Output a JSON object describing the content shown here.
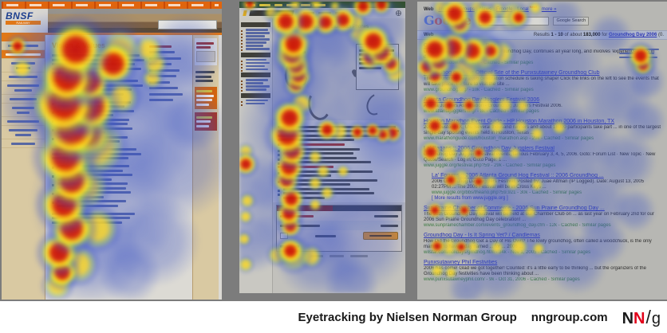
{
  "caption": {
    "text": "Eyetracking by Nielsen Norman Group",
    "site": "nngroup.com",
    "logo": {
      "n1": "N",
      "n2": "N",
      "slash": "/",
      "g": "g"
    }
  },
  "panels": {
    "bnsf": {
      "logo": "BNSF",
      "logo_sub": "RAILWAY",
      "page_title": "Vision & Values",
      "heatmap": {
        "hot": [
          [
            93,
            60,
            26
          ],
          [
            140,
            78,
            20
          ],
          [
            82,
            95,
            26
          ],
          [
            110,
            100,
            20
          ],
          [
            78,
            128,
            30
          ],
          [
            112,
            132,
            24
          ],
          [
            88,
            160,
            28
          ],
          [
            108,
            166,
            22
          ],
          [
            80,
            195,
            26
          ],
          [
            88,
            225,
            22
          ],
          [
            78,
            255,
            22
          ],
          [
            88,
            285,
            20
          ],
          [
            72,
            315,
            18
          ],
          [
            76,
            340,
            14
          ],
          [
            20,
            56,
            9
          ]
        ],
        "warm": [
          [
            148,
            62,
            22
          ],
          [
            184,
            60,
            15
          ],
          [
            192,
            78,
            13
          ],
          [
            189,
            96,
            11
          ],
          [
            118,
            182,
            30
          ],
          [
            104,
            232,
            24
          ],
          [
            120,
            285,
            22
          ],
          [
            96,
            330,
            20
          ],
          [
            70,
            356,
            15
          ],
          [
            26,
            84,
            10
          ],
          [
            150,
            120,
            18
          ]
        ],
        "cool": [
          [
            120,
            90,
            85
          ],
          [
            150,
            160,
            95
          ],
          [
            130,
            250,
            95
          ],
          [
            112,
            318,
            65
          ],
          [
            205,
            100,
            65
          ],
          [
            218,
            200,
            75
          ],
          [
            62,
            60,
            48
          ],
          [
            42,
            130,
            48
          ],
          [
            192,
            300,
            58
          ],
          [
            232,
            62,
            48
          ],
          [
            160,
            340,
            40
          ],
          [
            240,
            150,
            40
          ]
        ]
      }
    },
    "ecommerce": {
      "heading": "Products for Motorola … Bluetooth Phones",
      "heatmap": {
        "hot": [
          [
            13,
            3,
            7
          ],
          [
            155,
            6,
            10
          ],
          [
            178,
            4,
            9
          ],
          [
            58,
            25,
            14
          ],
          [
            83,
            25,
            14
          ],
          [
            108,
            26,
            12
          ],
          [
            130,
            23,
            12
          ],
          [
            168,
            50,
            16
          ],
          [
            178,
            64,
            14
          ],
          [
            164,
            70,
            12
          ],
          [
            190,
            78,
            10
          ],
          [
            68,
            53,
            16
          ],
          [
            66,
            66,
            16
          ],
          [
            71,
            80,
            13
          ],
          [
            74,
            93,
            12
          ],
          [
            71,
            104,
            10
          ],
          [
            63,
            146,
            16
          ],
          [
            60,
            168,
            18
          ],
          [
            66,
            188,
            14
          ],
          [
            62,
            208,
            14
          ],
          [
            59,
            224,
            12
          ],
          [
            65,
            248,
            12
          ],
          [
            62,
            266,
            12
          ],
          [
            64,
            282,
            10
          ],
          [
            64,
            313,
            12
          ],
          [
            110,
            161,
            10
          ],
          [
            148,
            164,
            8
          ],
          [
            167,
            162,
            8
          ],
          [
            180,
            167,
            8
          ],
          [
            192,
            165,
            9
          ],
          [
            8,
            204,
            10
          ]
        ],
        "warm": [
          [
            145,
            25,
            10
          ],
          [
            152,
            40,
            13
          ],
          [
            195,
            90,
            11
          ],
          [
            125,
            163,
            10
          ],
          [
            95,
            195,
            8
          ],
          [
            105,
            213,
            8
          ],
          [
            130,
            213,
            7
          ],
          [
            95,
            228,
            8
          ],
          [
            110,
            240,
            8
          ],
          [
            95,
            255,
            7
          ],
          [
            68,
            318,
            17
          ],
          [
            90,
            320,
            12
          ],
          [
            48,
            318,
            10
          ],
          [
            8,
            188,
            8
          ],
          [
            10,
            250,
            8
          ],
          [
            8,
            270,
            7
          ],
          [
            6,
            298,
            7
          ],
          [
            8,
            330,
            8
          ],
          [
            70,
            5,
            7
          ],
          [
            96,
            3,
            7
          ],
          [
            120,
            6,
            6
          ],
          [
            40,
            14,
            8
          ],
          [
            78,
            128,
            12
          ]
        ],
        "cool": [
          [
            90,
            60,
            65
          ],
          [
            70,
            160,
            75
          ],
          [
            80,
            260,
            75
          ],
          [
            100,
            320,
            55
          ],
          [
            160,
            120,
            65
          ],
          [
            170,
            220,
            75
          ],
          [
            150,
            300,
            65
          ],
          [
            190,
            160,
            55
          ],
          [
            60,
            100,
            55
          ],
          [
            120,
            40,
            45
          ],
          [
            180,
            30,
            38
          ],
          [
            140,
            355,
            35
          ],
          [
            20,
            230,
            40
          ],
          [
            18,
            300,
            40
          ]
        ]
      }
    },
    "google": {
      "top_links": [
        "Web",
        "Images",
        "Groups",
        "News",
        "Froogle",
        "Local",
        "more »"
      ],
      "new_badge": "New!",
      "logo_letters": [
        [
          "G",
          "#5a75c8"
        ],
        [
          "o",
          "#c8604f"
        ],
        [
          "o",
          "#d8a83c"
        ],
        [
          "g",
          "#5a75c8"
        ],
        [
          "l",
          "#4f9a52"
        ],
        [
          "e",
          "#c8604f"
        ]
      ],
      "search_button": "Google Search",
      "tab_label": "Web",
      "stats": {
        "prefix": "Results ",
        "range": "1 - 10",
        "mid": " of about ",
        "count": "183,000",
        "for_word": " for ",
        "query": "Groundhog Day 2006",
        "tail": " (0."
      },
      "results": [
        {
          "title": "Groundhog Job Shadow Day",
          "snippet": "Describes a project that begins on Groundhog Day, continues all year long, and involves 'experienced' kids in discussions about the work world.",
          "url": "www.jobshadow.org/ - 15k - Cached - Similar pages"
        },
        {
          "title": "Groundhog.org - the Official Site of the Punxsutawney Groundhog Club",
          "snippet": "The Groundhog Day 2006 celebration schedule is taking shape! Click the links on the left to see the events that will take place. Be sure to visit the site ...",
          "url": "www.groundhog.org/ - 10k - Cached - Similar pages"
        },
        {
          "title": "Atlanta Groundhog Day Jugglers Festival 2006",
          "snippet": "Atlanta Jugglers Association - Groundhog Jugglers Festival 2006.",
          "url": "www.atlantajugglers.org/ - 8k - Cached - Similar pages"
        },
        {
          "title": "Houston Marathon Event Guide - HP Houston Marathon 2006 in Houston, TX",
          "snippet": "2006 Houston, TX, US. Several thousand runners and about 18000 participants take part ... in one of the largest single-day sporting events held in Houston, Texas ...",
          "url": "www.marathonguide.com/houston_marathon.asp - 29k - Cached - Similar pages"
        },
        {
          "title": "La' Pagans :: 2006 Groundhog Day Jugglers Festival",
          "snippet": "Groundhog Day Jugglers Festival events, famous February 3, 4, 5, 2006. Goto: Forum List · New Topic · New Quote/Search · Log in, Goto Page: 1 ...",
          "url": "www.juggle.org/festival.php?59 - 29k - Cached - Similar pages"
        },
        {
          "indent": true,
          "title": "La' Forums :: 2006 Atlanta Ground Hog Festival :: 2006 Groundhog ...",
          "snippet": "2006 Groundhog Day Jugglers Festival. Posted by: Juae Altman (IP Logged). Date: August 13, 2005 02:27PM ... The 2006 Festival will be in Cross Keys ...",
          "url": "www.juggle.org/bbs/theano.php?59,921 - 30k - Cached - Similar pages",
          "extra": "[ More results from www.juggle.org ]"
        },
        {
          "title": "Sun Prairie Chamber of Commerce - 2006 Sun Prairie Groundhog Day ...",
          "snippet": "The 58th Groundhog Day festival will be held at our Chamber Club on ... as last year on February 2nd for our 2006 Sun Prairie Groundhog Day celebration! ...",
          "url": "www.sunprairiechamber.com/events_groundhog_day.cfm - 12k - Cached - Similar pages"
        },
        {
          "title": "Groundhog Day - Is It Spring Yet? / Candlemas",
          "snippet": "How Did the Groundhog Get a Day of His Own? The lowly groundhog, often called a woodchuck, is the only mammal to have a day named ... for ... 2006 ...",
          "url": "wilstar.com/holidays/grndhog.htm - 34k - Nov 1, 2005 - Cached - Similar pages"
        },
        {
          "title": "Punxsutawney Phil Festivities",
          "snippet": "2006 has come! Glad we got together! Counted: it's a little early to be thinking ... but the organizers of the Groundhog Day festivities have been thinking about ...",
          "url": "www.punxsutawneyphil.com/ - 9k - Oct 31, 2006 - Cached - Similar pages"
        }
      ],
      "heatmap": {
        "hot": [
          [
            47,
            15,
            14
          ],
          [
            53,
            27,
            12
          ],
          [
            85,
            20,
            12
          ],
          [
            127,
            20,
            9
          ],
          [
            22,
            60,
            16
          ],
          [
            45,
            58,
            15
          ],
          [
            69,
            62,
            14
          ],
          [
            27,
            76,
            12
          ],
          [
            12,
            82,
            10
          ],
          [
            92,
            62,
            10
          ],
          [
            280,
            68,
            11
          ],
          [
            283,
            80,
            9
          ],
          [
            22,
            93,
            10
          ],
          [
            49,
            95,
            9
          ],
          [
            17,
            128,
            10
          ],
          [
            40,
            130,
            8
          ],
          [
            65,
            130,
            8
          ],
          [
            22,
            156,
            10
          ],
          [
            47,
            157,
            8
          ],
          [
            17,
            189,
            10
          ],
          [
            77,
            190,
            7
          ],
          [
            42,
            224,
            8
          ],
          [
            77,
            226,
            7
          ],
          [
            22,
            262,
            8
          ],
          [
            59,
            262,
            7
          ],
          [
            25,
            307,
            8
          ],
          [
            55,
            308,
            7
          ]
        ],
        "warm": [
          [
            30,
            8,
            9
          ],
          [
            75,
            8,
            8
          ],
          [
            100,
            10,
            8
          ],
          [
            120,
            18,
            15
          ],
          [
            148,
            8,
            7
          ],
          [
            80,
            65,
            20
          ],
          [
            105,
            65,
            14
          ],
          [
            60,
            82,
            15
          ],
          [
            70,
            96,
            12
          ],
          [
            90,
            97,
            10
          ],
          [
            35,
            106,
            10
          ],
          [
            55,
            108,
            8
          ],
          [
            85,
            130,
            10
          ],
          [
            110,
            130,
            9
          ],
          [
            132,
            131,
            8
          ],
          [
            70,
            158,
            12
          ],
          [
            100,
            157,
            9
          ],
          [
            130,
            157,
            8
          ],
          [
            178,
            158,
            8
          ],
          [
            150,
            166,
            8
          ],
          [
            40,
            190,
            10
          ],
          [
            62,
            190,
            8
          ],
          [
            100,
            191,
            8
          ],
          [
            122,
            190,
            7
          ],
          [
            55,
            222,
            10
          ],
          [
            92,
            227,
            8
          ],
          [
            120,
            228,
            8
          ],
          [
            150,
            230,
            7
          ],
          [
            40,
            262,
            10
          ],
          [
            80,
            263,
            8
          ],
          [
            112,
            263,
            8
          ],
          [
            142,
            264,
            7
          ],
          [
            40,
            308,
            10
          ],
          [
            70,
            308,
            8
          ],
          [
            100,
            309,
            8
          ],
          [
            127,
            308,
            10
          ],
          [
            152,
            310,
            7
          ],
          [
            25,
            338,
            8
          ],
          [
            42,
            340,
            7
          ],
          [
            281,
            74,
            15
          ]
        ],
        "cool": [
          [
            60,
            70,
            55
          ],
          [
            120,
            90,
            65
          ],
          [
            180,
            80,
            55
          ],
          [
            90,
            140,
            55
          ],
          [
            150,
            160,
            65
          ],
          [
            80,
            210,
            55
          ],
          [
            140,
            230,
            65
          ],
          [
            90,
            280,
            55
          ],
          [
            150,
            300,
            55
          ],
          [
            200,
            180,
            55
          ],
          [
            222,
            250,
            45
          ],
          [
            100,
            340,
            38
          ],
          [
            200,
            330,
            38
          ],
          [
            250,
            120,
            45
          ],
          [
            262,
            200,
            38
          ],
          [
            30,
            40,
            38
          ],
          [
            182,
            20,
            28
          ],
          [
            242,
            42,
            28
          ],
          [
            285,
            150,
            28
          ],
          [
            62,
            360,
            24
          ],
          [
            232,
            300,
            32
          ],
          [
            272,
            262,
            28
          ],
          [
            288,
            100,
            24
          ]
        ]
      }
    }
  }
}
